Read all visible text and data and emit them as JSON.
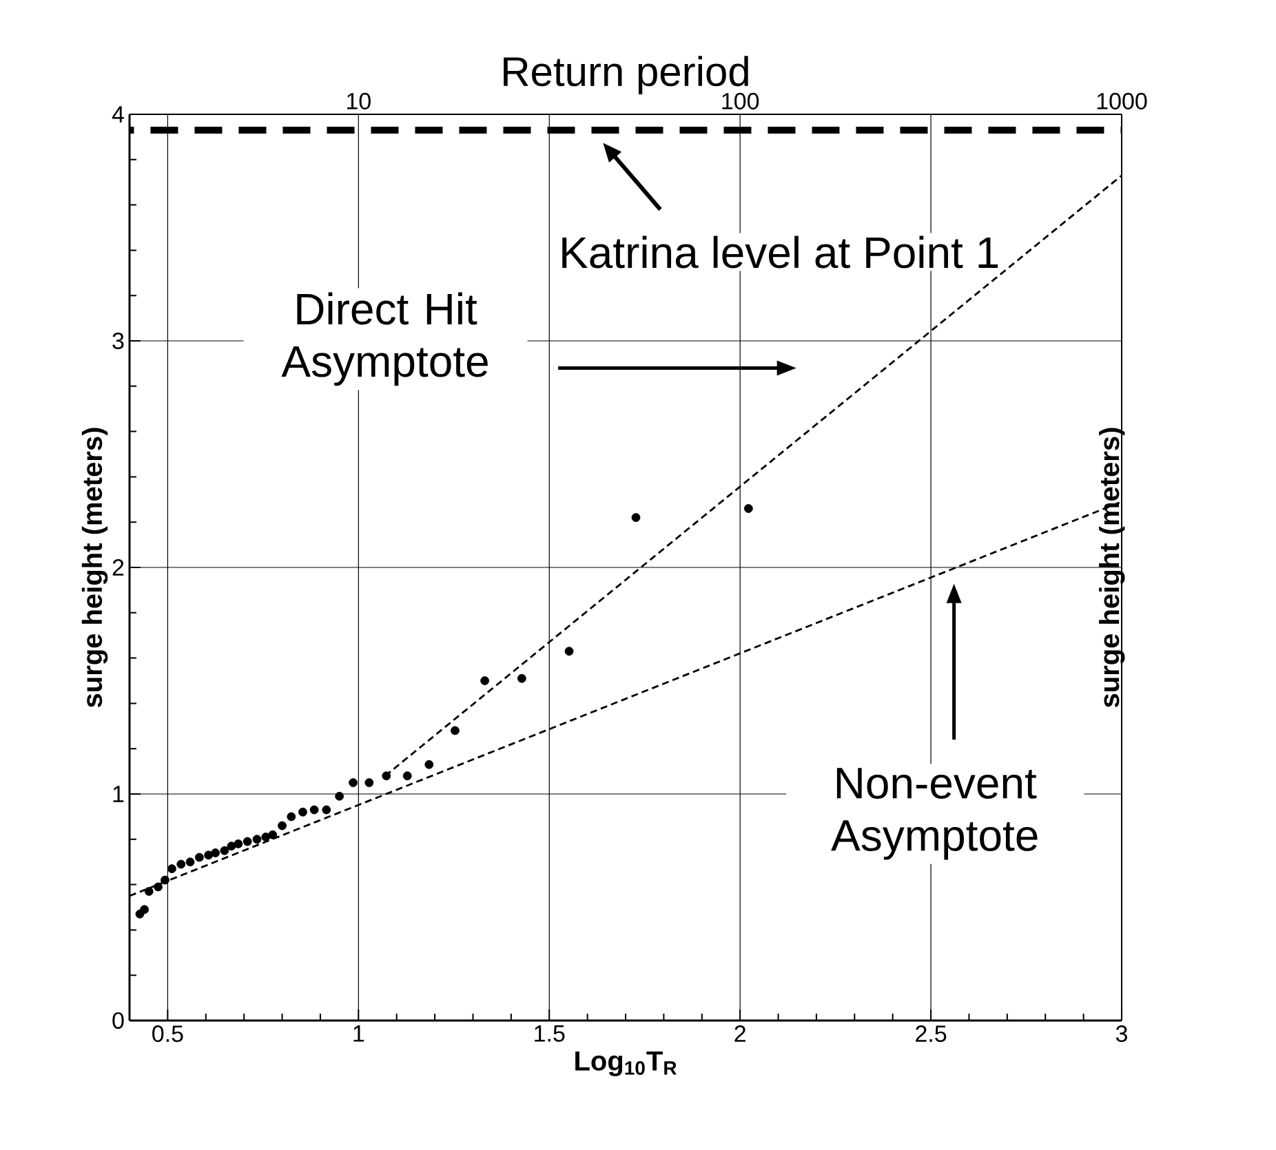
{
  "chart_data": {
    "type": "scatter",
    "x2label": "Return period",
    "xlabel": "Log$_{10}$T$_{R}$",
    "ylabel": "surge height (meters)",
    "y2label": "surge height (meters)",
    "xlim": [
      0.4,
      3
    ],
    "xticks": [
      0.5,
      1,
      1.5,
      2,
      2.5,
      3
    ],
    "ylim": [
      0,
      4
    ],
    "yticks": [
      0,
      1,
      2,
      3,
      4
    ],
    "x2lim": [
      2.512,
      1000
    ],
    "x2ticks": [
      10,
      100,
      1000
    ],
    "log": "x2",
    "grid": true,
    "legend": false,
    "annotations": [
      "Direct Hit Asymptote",
      "Non-event Asymptote",
      {
        "text": "Katrina level at Point 1",
        "x": 1.64,
        "y": 3.93
      }
    ],
    "series": [
      {
        "marker": "circle",
        "color": "#000000",
        "x": [
          0.427,
          0.439,
          0.451,
          0.475,
          0.493,
          0.511,
          0.535,
          0.559,
          0.583,
          0.607,
          0.625,
          0.649,
          0.667,
          0.685,
          0.709,
          0.734,
          0.757,
          0.775,
          0.8,
          0.824,
          0.854,
          0.884,
          0.916,
          0.95,
          0.986,
          1.028,
          1.073,
          1.128,
          1.185,
          1.253,
          1.331,
          1.428,
          1.552,
          1.727,
          2.022
        ],
        "values": [
          0.47,
          0.49,
          0.57,
          0.59,
          0.62,
          0.67,
          0.69,
          0.7,
          0.72,
          0.73,
          0.74,
          0.75,
          0.77,
          0.78,
          0.79,
          0.8,
          0.81,
          0.82,
          0.86,
          0.9,
          0.92,
          0.93,
          0.93,
          0.99,
          1.05,
          1.05,
          1.08,
          1.08,
          1.13,
          1.28,
          1.5,
          1.51,
          1.63,
          2.22,
          2.26
        ]
      },
      {
        "type": "line",
        "line_style": "dashed",
        "color": "#000000",
        "x": [
          1.07,
          3
        ],
        "values": [
          1.08,
          3.73
        ]
      },
      {
        "type": "line",
        "line_style": "dashed",
        "color": "#000000",
        "x": [
          0.4,
          3
        ],
        "values": [
          0.55,
          2.29
        ]
      }
    ],
    "ref_lines": [
      {
        "axis": "y",
        "value": 3.93,
        "line_style": "dashed",
        "color": "#000000"
      }
    ]
  }
}
